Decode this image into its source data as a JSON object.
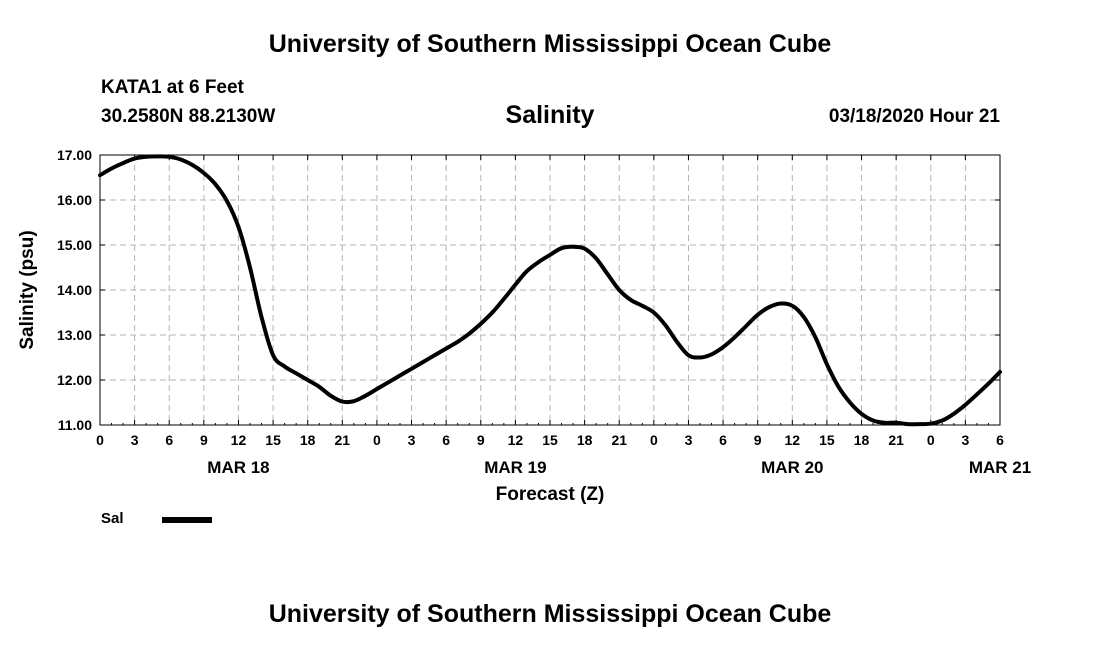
{
  "header": {
    "top_title": "University of Southern Mississippi Ocean Cube",
    "station_name": "KATA1 at 6 Feet",
    "station_coords": "30.2580N 88.2130W",
    "issue_time": "03/18/2020 Hour 21",
    "bottom_title": "University of Southern Mississippi Ocean Cube"
  },
  "legend": {
    "label": "Sal"
  },
  "colors": {
    "line": "#000000",
    "grid": "#b4b4b4",
    "axis": "#000000"
  },
  "chart_data": {
    "type": "line",
    "title": "Salinity",
    "xlabel": "Forecast (Z)",
    "ylabel": "Salinity (psu)",
    "xlim": [
      0,
      78
    ],
    "ylim": [
      11.0,
      17.0
    ],
    "grid": true,
    "legend_position": "bottom-left",
    "x_unit": "hours from 00Z MAR 18",
    "x_ticks": [
      0,
      3,
      6,
      9,
      12,
      15,
      18,
      21,
      24,
      27,
      30,
      33,
      36,
      39,
      42,
      45,
      48,
      51,
      54,
      57,
      60,
      63,
      66,
      69,
      72,
      75,
      78
    ],
    "x_tick_labels": [
      "0",
      "3",
      "6",
      "9",
      "12",
      "15",
      "18",
      "21",
      "0",
      "3",
      "6",
      "9",
      "12",
      "15",
      "18",
      "21",
      "0",
      "3",
      "6",
      "9",
      "12",
      "15",
      "18",
      "21",
      "0",
      "3",
      "6"
    ],
    "date_labels": [
      {
        "x": 12,
        "label": "MAR 18"
      },
      {
        "x": 36,
        "label": "MAR 19"
      },
      {
        "x": 60,
        "label": "MAR 20"
      },
      {
        "x": 78,
        "label": "MAR 21"
      }
    ],
    "y_ticks": [
      11.0,
      12.0,
      13.0,
      14.0,
      15.0,
      16.0,
      17.0
    ],
    "y_tick_labels": [
      "11.00",
      "12.00",
      "13.00",
      "14.00",
      "15.00",
      "16.00",
      "17.00"
    ],
    "series": [
      {
        "name": "Sal",
        "x": [
          0,
          1,
          2,
          3,
          4,
          5,
          6,
          7,
          8,
          9,
          10,
          11,
          12,
          13,
          14,
          15,
          16,
          17,
          18,
          19,
          20,
          21,
          22,
          23,
          24,
          25,
          26,
          27,
          28,
          29,
          30,
          31,
          32,
          33,
          34,
          35,
          36,
          37,
          38,
          39,
          40,
          41,
          42,
          43,
          44,
          45,
          46,
          47,
          48,
          49,
          50,
          51,
          52,
          53,
          54,
          55,
          56,
          57,
          58,
          59,
          60,
          61,
          62,
          63,
          64,
          65,
          66,
          67,
          68,
          69,
          70,
          71,
          72,
          73,
          74,
          75,
          76,
          77,
          78
        ],
        "values": [
          16.55,
          16.7,
          16.82,
          16.92,
          16.96,
          16.97,
          16.96,
          16.9,
          16.78,
          16.6,
          16.35,
          15.98,
          15.4,
          14.5,
          13.4,
          12.55,
          12.3,
          12.15,
          12.0,
          11.85,
          11.65,
          11.52,
          11.53,
          11.65,
          11.8,
          11.95,
          12.1,
          12.25,
          12.4,
          12.55,
          12.7,
          12.85,
          13.03,
          13.25,
          13.5,
          13.8,
          14.12,
          14.42,
          14.62,
          14.78,
          14.93,
          14.96,
          14.92,
          14.7,
          14.35,
          14.0,
          13.78,
          13.65,
          13.5,
          13.22,
          12.85,
          12.55,
          12.5,
          12.57,
          12.73,
          12.95,
          13.2,
          13.45,
          13.62,
          13.7,
          13.65,
          13.4,
          12.95,
          12.35,
          11.85,
          11.5,
          11.25,
          11.1,
          11.05,
          11.05,
          11.02,
          11.02,
          11.03,
          11.1,
          11.25,
          11.45,
          11.68,
          11.92,
          12.18
        ]
      }
    ]
  }
}
